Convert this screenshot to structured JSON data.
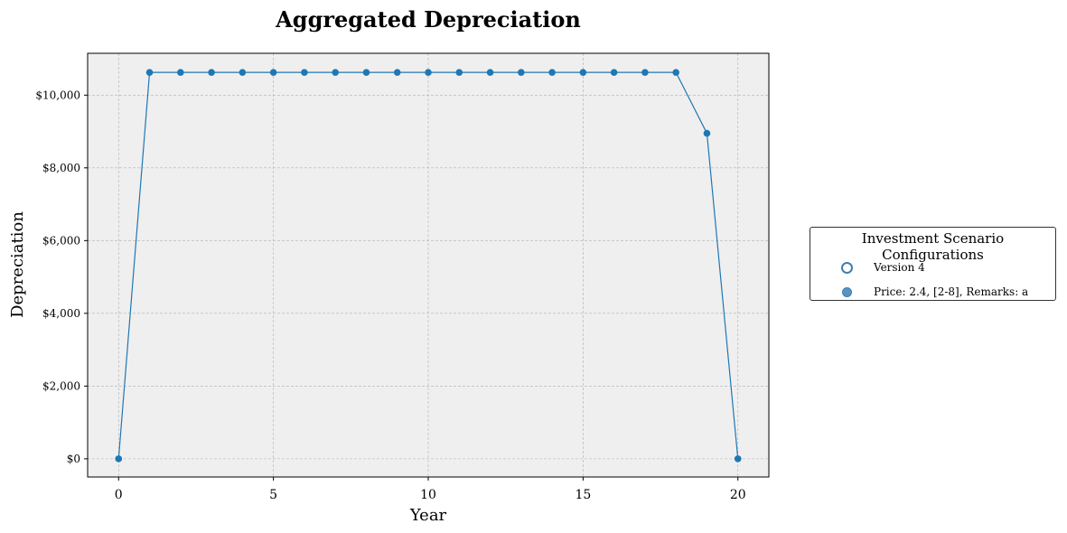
{
  "chart_data": {
    "type": "line",
    "title": "Aggregated Depreciation",
    "xlabel": "Year",
    "ylabel": "Depreciation",
    "x": [
      0,
      1,
      2,
      3,
      4,
      5,
      6,
      7,
      8,
      9,
      10,
      11,
      12,
      13,
      14,
      15,
      16,
      17,
      18,
      19,
      20
    ],
    "series": [
      {
        "name": "Price: 2.4, [2-8], Remarks: a",
        "values": [
          0,
          10625,
          10625,
          10625,
          10625,
          10625,
          10625,
          10625,
          10625,
          10625,
          10625,
          10625,
          10625,
          10625,
          10625,
          10625,
          10625,
          10625,
          10625,
          8950,
          0
        ],
        "color": "#1f77b4"
      }
    ],
    "xlim": [
      -1,
      21
    ],
    "ylim": [
      -500,
      11150
    ],
    "x_ticks": [
      0,
      5,
      10,
      15,
      20
    ],
    "x_tick_labels": [
      "0",
      "5",
      "10",
      "15",
      "20"
    ],
    "y_ticks": [
      0,
      2000,
      4000,
      6000,
      8000,
      10000
    ],
    "y_tick_labels": [
      "$0",
      "$2,000",
      "$4,000",
      "$6,000",
      "$8,000",
      "$10,000"
    ],
    "grid": true,
    "background": "#efefef",
    "legend": {
      "title": "Investment Scenario Configurations",
      "placement": "right",
      "entries": [
        "Version 4",
        "Price: 2.4, [2-8], Remarks: a"
      ]
    }
  }
}
